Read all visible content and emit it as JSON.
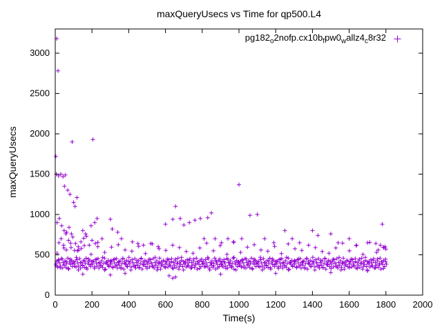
{
  "chart_data": {
    "type": "scatter",
    "title": "maxQueryUsecs vs Time for qp500.L4",
    "xlabel": "Time(s)",
    "ylabel": "maxQueryUsecs",
    "xlim": [
      0,
      2000
    ],
    "ylim": [
      0,
      3300
    ],
    "xticks": [
      0,
      200,
      400,
      600,
      800,
      1000,
      1200,
      1400,
      1600,
      1800,
      2000
    ],
    "yticks": [
      0,
      500,
      1000,
      1500,
      2000,
      2500,
      3000
    ],
    "grid": false,
    "legend_position": "top-right-inside",
    "series": [
      {
        "name": "pg182_o2nofp.cx10b_fpw0_wallz4_c8r32",
        "label_parts": [
          {
            "text": "pg182",
            "sub": false
          },
          {
            "text": "o",
            "sub": true
          },
          {
            "text": "2nofp.cx10b",
            "sub": false
          },
          {
            "text": "f",
            "sub": true
          },
          {
            "text": "pw0",
            "sub": false
          },
          {
            "text": "w",
            "sub": true
          },
          {
            "text": "allz4",
            "sub": false
          },
          {
            "text": "c",
            "sub": true
          },
          {
            "text": "8r32",
            "sub": false
          }
        ],
        "marker": "plus",
        "color": "#9400d3",
        "points": [
          [
            8,
            3180
          ],
          [
            15,
            2780
          ],
          [
            3,
            1720
          ],
          [
            6,
            1500
          ],
          [
            18,
            1480
          ],
          [
            30,
            1500
          ],
          [
            42,
            1470
          ],
          [
            55,
            1490
          ],
          [
            50,
            1350
          ],
          [
            68,
            1300
          ],
          [
            80,
            1250
          ],
          [
            92,
            1900
          ],
          [
            100,
            1150
          ],
          [
            108,
            1100
          ],
          [
            118,
            1210
          ],
          [
            10,
            900
          ],
          [
            22,
            950
          ],
          [
            35,
            860
          ],
          [
            48,
            800
          ],
          [
            62,
            780
          ],
          [
            75,
            840
          ],
          [
            88,
            760
          ],
          [
            205,
            1930
          ],
          [
            195,
            860
          ],
          [
            215,
            900
          ],
          [
            228,
            950
          ],
          [
            150,
            800
          ],
          [
            165,
            760
          ],
          [
            255,
            700
          ],
          [
            300,
            940
          ],
          [
            310,
            820
          ],
          [
            340,
            780
          ],
          [
            360,
            700
          ],
          [
            420,
            660
          ],
          [
            450,
            640
          ],
          [
            480,
            620
          ],
          [
            520,
            640
          ],
          [
            560,
            600
          ],
          [
            600,
            880
          ],
          [
            640,
            940
          ],
          [
            655,
            1100
          ],
          [
            680,
            950
          ],
          [
            700,
            870
          ],
          [
            730,
            900
          ],
          [
            760,
            930
          ],
          [
            790,
            950
          ],
          [
            810,
            700
          ],
          [
            830,
            960
          ],
          [
            850,
            1020
          ],
          [
            870,
            700
          ],
          [
            905,
            650
          ],
          [
            940,
            700
          ],
          [
            970,
            660
          ],
          [
            1000,
            1370
          ],
          [
            1015,
            700
          ],
          [
            1060,
            990
          ],
          [
            1100,
            1000
          ],
          [
            1140,
            700
          ],
          [
            1190,
            650
          ],
          [
            1250,
            800
          ],
          [
            1290,
            700
          ],
          [
            1330,
            650
          ],
          [
            1400,
            800
          ],
          [
            1430,
            740
          ],
          [
            1500,
            760
          ],
          [
            1540,
            650
          ],
          [
            1600,
            700
          ],
          [
            1640,
            620
          ],
          [
            1700,
            650
          ],
          [
            1745,
            640
          ],
          [
            1780,
            880
          ],
          [
            1795,
            600
          ],
          [
            640,
            210
          ],
          [
            655,
            225
          ],
          [
            150,
            260
          ],
          [
            380,
            270
          ],
          [
            620,
            240
          ],
          [
            900,
            260
          ],
          [
            1200,
            270
          ],
          [
            1500,
            280
          ],
          [
            300,
            250
          ],
          [
            1700,
            300
          ],
          [
            1758,
            560
          ],
          [
            1770,
            620
          ],
          [
            1788,
            590
          ],
          [
            1800,
            570
          ]
        ],
        "early_cluster": [
          [
            20,
            650
          ],
          [
            32,
            700
          ],
          [
            45,
            620
          ],
          [
            58,
            760
          ],
          [
            72,
            680
          ],
          [
            95,
            720
          ],
          [
            110,
            640
          ],
          [
            125,
            600
          ],
          [
            140,
            660
          ],
          [
            155,
            705
          ],
          [
            170,
            730
          ],
          [
            185,
            620
          ],
          [
            200,
            680
          ],
          [
            218,
            640
          ],
          [
            232,
            600
          ],
          [
            128,
            560
          ],
          [
            142,
            580
          ],
          [
            60,
            560
          ],
          [
            86,
            590
          ],
          [
            105,
            555
          ]
        ],
        "dense_band": {
          "x_start": 3,
          "x_step": 5,
          "x_end": 1803,
          "y_cycle": [
            385,
            420,
            350,
            440,
            400,
            360,
            452,
            335,
            405,
            372,
            425,
            345,
            392,
            458,
            322,
            412,
            382,
            432,
            355,
            415
          ]
        },
        "dense_band2": {
          "x_start": 5,
          "x_step": 11,
          "x_end": 1805,
          "y_cycle": [
            365,
            430,
            340,
            448,
            375,
            415,
            332,
            445,
            395,
            358,
            468,
            312,
            402
          ]
        },
        "mid_band": {
          "x_start": 10,
          "x_step": 37,
          "x_end": 1790,
          "y_cycle": [
            520,
            585,
            645,
            550,
            615,
            505,
            655,
            530,
            595,
            625,
            560,
            545,
            605,
            515,
            635,
            575,
            555,
            620,
            590,
            540
          ]
        }
      }
    ]
  }
}
